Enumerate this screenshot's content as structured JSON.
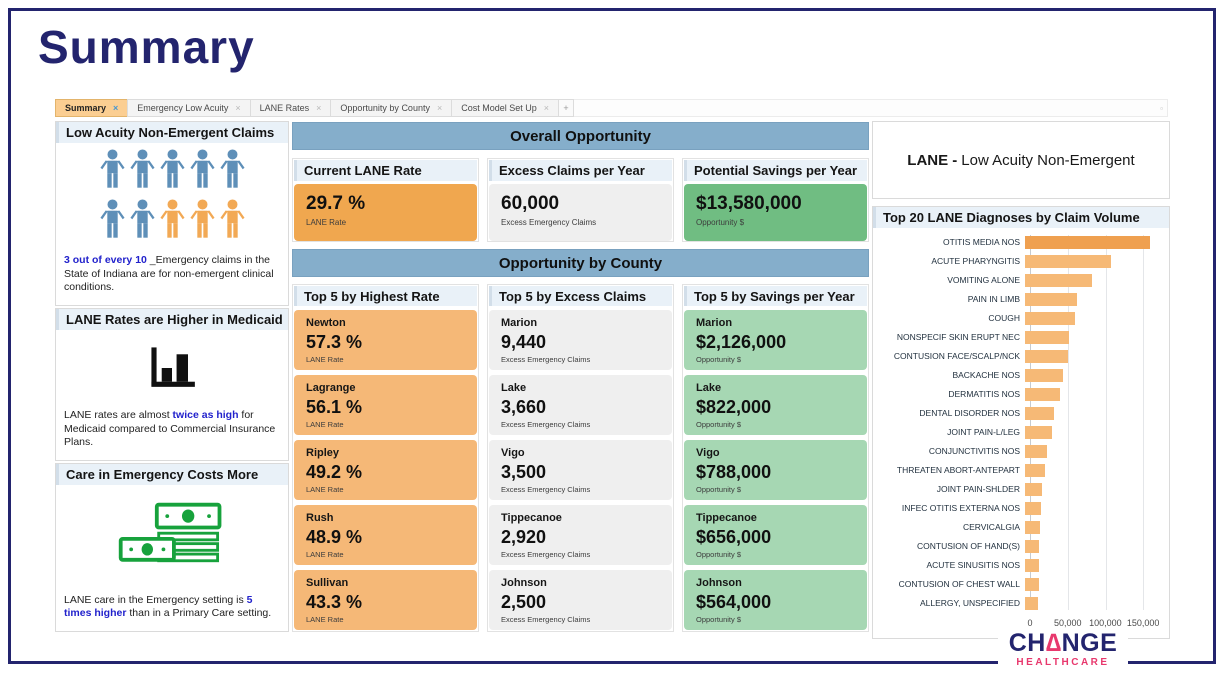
{
  "page": {
    "title": "Summary"
  },
  "tab_bar": {
    "tabs": [
      {
        "label": "Summary",
        "close": "×",
        "active": true
      },
      {
        "label": "Emergency Low Acuity",
        "close": "×",
        "active": false
      },
      {
        "label": "LANE Rates",
        "close": "×",
        "active": false
      },
      {
        "label": "Opportunity by County",
        "close": "×",
        "active": false
      },
      {
        "label": "Cost Model Set Up",
        "close": "×",
        "active": false
      }
    ],
    "new_tab_label": "+"
  },
  "icons": {
    "tab_strip_menu": "▫"
  },
  "sidebar": {
    "sections": [
      {
        "title": "Low Acuity Non-Emergent Claims",
        "icon": "people-grid-icon",
        "people_rows": [
          [
            "blue",
            "blue",
            "blue",
            "blue",
            "blue"
          ],
          [
            "blue",
            "blue",
            "orange",
            "orange",
            "orange"
          ]
        ],
        "caption_parts": [
          {
            "text": "3 out of every 10",
            "bold_blue": true
          },
          {
            "text": " _Emergency claims in the State of Indiana are for non-emergent clinical conditions.",
            "bold_blue": false
          }
        ]
      },
      {
        "title": "LANE Rates are Higher in Medicaid",
        "icon": "bar-chart-icon",
        "caption_parts": [
          {
            "text": "LANE rates are almost ",
            "bold_blue": false
          },
          {
            "text": "twice as high",
            "bold_blue": true
          },
          {
            "text": " for Medicaid compared to Commercial Insurance Plans.",
            "bold_blue": false
          }
        ]
      },
      {
        "title": "Care in Emergency Costs More",
        "icon": "money-stack-icon",
        "caption_parts": [
          {
            "text": "LANE care in the Emergency setting is ",
            "bold_blue": false
          },
          {
            "text": "5 times higher",
            "bold_blue": true
          },
          {
            "text": " than in a Primary Care setting.",
            "bold_blue": false
          }
        ]
      }
    ]
  },
  "overall": {
    "title": "Overall Opportunity",
    "kpis": [
      {
        "header": "Current LANE Rate",
        "value": "29.7 %",
        "caption": "LANE Rate",
        "color_key": "kpi_orange"
      },
      {
        "header": "Excess Claims per Year",
        "value": "60,000",
        "caption": "Excess Emergency Claims",
        "color_key": "kpi_gray"
      },
      {
        "header": "Potential Savings per Year",
        "value": "$13,580,000",
        "caption": "Opportunity $",
        "color_key": "kpi_green"
      }
    ]
  },
  "county": {
    "title": "Opportunity by County",
    "columns": [
      {
        "header": "Top 5 by Highest Rate",
        "color_key": "county_orange",
        "cards": [
          {
            "name": "Newton",
            "value": "57.3 %",
            "caption": "LANE Rate"
          },
          {
            "name": "Lagrange",
            "value": "56.1 %",
            "caption": "LANE Rate"
          },
          {
            "name": "Ripley",
            "value": "49.2 %",
            "caption": "LANE Rate"
          },
          {
            "name": "Rush",
            "value": "48.9 %",
            "caption": "LANE Rate"
          },
          {
            "name": "Sullivan",
            "value": "43.3 %",
            "caption": "LANE Rate"
          }
        ]
      },
      {
        "header": "Top 5 by Excess Claims",
        "color_key": "kpi_gray",
        "cards": [
          {
            "name": "Marion",
            "value": "9,440",
            "caption": "Excess Emergency Claims"
          },
          {
            "name": "Lake",
            "value": "3,660",
            "caption": "Excess Emergency Claims"
          },
          {
            "name": "Vigo",
            "value": "3,500",
            "caption": "Excess Emergency Claims"
          },
          {
            "name": "Tippecanoe",
            "value": "2,920",
            "caption": "Excess Emergency Claims"
          },
          {
            "name": "Johnson",
            "value": "2,500",
            "caption": "Excess Emergency Claims"
          }
        ]
      },
      {
        "header": "Top 5 by Savings per Year",
        "color_key": "county_green",
        "cards": [
          {
            "name": "Marion",
            "value": "$2,126,000",
            "caption": "Opportunity $"
          },
          {
            "name": "Lake",
            "value": "$822,000",
            "caption": "Opportunity $"
          },
          {
            "name": "Vigo",
            "value": "$788,000",
            "caption": "Opportunity $"
          },
          {
            "name": "Tippecanoe",
            "value": "$656,000",
            "caption": "Opportunity $"
          },
          {
            "name": "Johnson",
            "value": "$564,000",
            "caption": "Opportunity $"
          }
        ]
      }
    ]
  },
  "right_panel": {
    "lane_label_bold": "LANE -",
    "lane_label_rest": "Low Acuity Non-Emergent"
  },
  "chart_data": {
    "type": "bar",
    "orientation": "horizontal",
    "title": "Top 20 LANE Diagnoses by Claim Volume",
    "categories": [
      "OTITIS MEDIA NOS",
      "ACUTE PHARYNGITIS",
      "VOMITING ALONE",
      "PAIN IN LIMB",
      "COUGH",
      "NONSPECIF SKIN ERUPT NEC",
      "CONTUSION FACE/SCALP/NCK",
      "BACKACHE NOS",
      "DERMATITIS NOS",
      "DENTAL DISORDER NOS",
      "JOINT PAIN-L/LEG",
      "CONJUNCTIVITIS NOS",
      "THREATEN ABORT-ANTEPART",
      "JOINT PAIN-SHLDER",
      "INFEC OTITIS EXTERNA NOS",
      "CERVICALGIA",
      "CONTUSION OF HAND(S)",
      "ACUTE SINUSITIS NOS",
      "CONTUSION OF CHEST WALL",
      "ALLERGY, UNSPECIFIED"
    ],
    "values": [
      160000,
      110000,
      86000,
      66000,
      64000,
      56000,
      55000,
      49000,
      45000,
      37000,
      35000,
      28000,
      26000,
      22000,
      21000,
      19000,
      18000,
      18000,
      18000,
      17000
    ],
    "xlim": [
      0,
      175000
    ],
    "x_ticks": [
      0,
      50000,
      100000,
      150000
    ],
    "x_tick_labels": [
      "0",
      "50,000",
      "100,000",
      "150,000"
    ],
    "highlight_index": 0,
    "grid": true,
    "legend": false
  },
  "logo": {
    "part1": "CH",
    "delta": "∆",
    "part2": "NGE",
    "sub": "HEALTHCARE"
  },
  "colors": {
    "navy": "#23246E",
    "banner_blue": "#85AECB",
    "header_blue_bg": "#E9F1F8",
    "kpi_orange": "#F0A74F",
    "kpi_gray": "#EFEFEF",
    "kpi_green": "#70BD82",
    "county_orange": "#F5B877",
    "county_green": "#A6D7B3",
    "accent_text_blue": "#2222CC",
    "person_blue": "#5E8FB8",
    "person_orange": "#F2A955",
    "money_green": "#17A23C",
    "bar_color": "#F6B976",
    "bar_highlight_color": "#EFA050",
    "logo_pink": "#E8386D",
    "active_tab_bg": "#FBCE92"
  }
}
